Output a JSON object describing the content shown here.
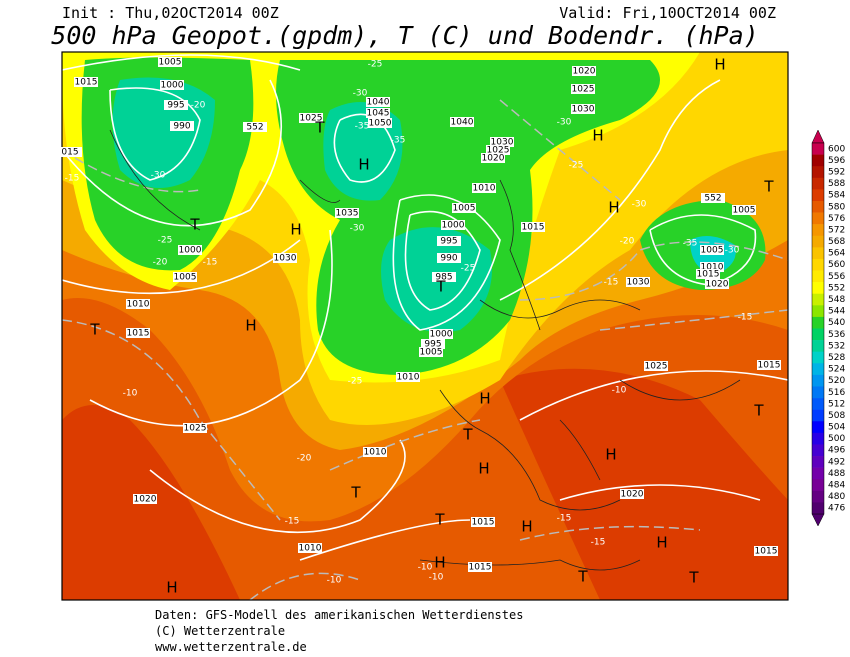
{
  "header": {
    "init": "Init : Thu,02OCT2014 00Z",
    "valid": "Valid: Fri,10OCT2014 00Z",
    "title": "500 hPa Geopot.(gpdm), T (C) und Bodendr. (hPa)"
  },
  "colorbar": [
    {
      "value": 600,
      "color": "#c8004e"
    },
    {
      "value": 596,
      "color": "#a00000"
    },
    {
      "value": 592,
      "color": "#b41400"
    },
    {
      "value": 588,
      "color": "#c82800"
    },
    {
      "value": 584,
      "color": "#dc3c00"
    },
    {
      "value": 580,
      "color": "#e65a00"
    },
    {
      "value": 576,
      "color": "#f07800"
    },
    {
      "value": 572,
      "color": "#f59600"
    },
    {
      "value": 568,
      "color": "#f5aa00"
    },
    {
      "value": 564,
      "color": "#fac300"
    },
    {
      "value": 560,
      "color": "#ffd700"
    },
    {
      "value": 556,
      "color": "#ffeb00"
    },
    {
      "value": 552,
      "color": "#ffff00"
    },
    {
      "value": 548,
      "color": "#c8f000"
    },
    {
      "value": 544,
      "color": "#8ce600"
    },
    {
      "value": 540,
      "color": "#28d228"
    },
    {
      "value": 536,
      "color": "#00d264"
    },
    {
      "value": 532,
      "color": "#00d296"
    },
    {
      "value": 528,
      "color": "#00d2c8"
    },
    {
      "value": 524,
      "color": "#00b4e6"
    },
    {
      "value": 520,
      "color": "#0096f0"
    },
    {
      "value": 516,
      "color": "#0078f5"
    },
    {
      "value": 512,
      "color": "#005afa"
    },
    {
      "value": 508,
      "color": "#003cff"
    },
    {
      "value": 504,
      "color": "#0000ff"
    },
    {
      "value": 500,
      "color": "#2800e6"
    },
    {
      "value": 496,
      "color": "#4600d2"
    },
    {
      "value": 492,
      "color": "#5f00be"
    },
    {
      "value": 488,
      "color": "#7300aa"
    },
    {
      "value": 484,
      "color": "#780096"
    },
    {
      "value": 480,
      "color": "#640082"
    },
    {
      "value": 476,
      "color": "#50006e"
    }
  ],
  "map_labels": [
    "1015",
    "1005",
    "1000",
    "995",
    "-20",
    "990",
    "552",
    "015",
    "-15",
    "-30",
    "T",
    "-25",
    "1000",
    "-20",
    "-15",
    "1005",
    "1010",
    "T",
    "1015",
    "H",
    "1030",
    "H",
    "-25",
    "-30",
    "1040",
    "1045",
    "-35",
    "1050",
    "1025",
    "T",
    "H",
    "-35",
    "1035",
    "-30",
    "1040",
    "1030",
    "1025",
    "1020",
    "1010",
    "1005",
    "1000",
    "995",
    "990",
    "985",
    "T",
    "-25",
    "1000",
    "995",
    "1005",
    "-25",
    "1010",
    "1015",
    "1020",
    "1025",
    "1030",
    "-30",
    "H",
    "-25",
    "H",
    "-30",
    "-20",
    "-15",
    "1030",
    "552",
    "1005",
    "T",
    "H",
    "-35",
    "1005",
    "-30",
    "1010",
    "1015",
    "1020",
    "-15",
    "1025",
    "1015",
    "-10",
    "H",
    "T",
    "H",
    "T",
    "H",
    "1010",
    "-20",
    "T",
    "1025",
    "-10",
    "1020",
    "-15",
    "1010",
    "T",
    "1015",
    "-15",
    "H",
    "1020",
    "-15",
    "H",
    "1015",
    "T",
    "T",
    "H",
    "-10",
    "-10",
    "1015",
    "-10",
    "H"
  ],
  "footer": [
    "Daten: GFS-Modell des amerikanischen Wetterdienstes",
    "(C) Wetterzentrale",
    "www.wetterzentrale.de"
  ]
}
